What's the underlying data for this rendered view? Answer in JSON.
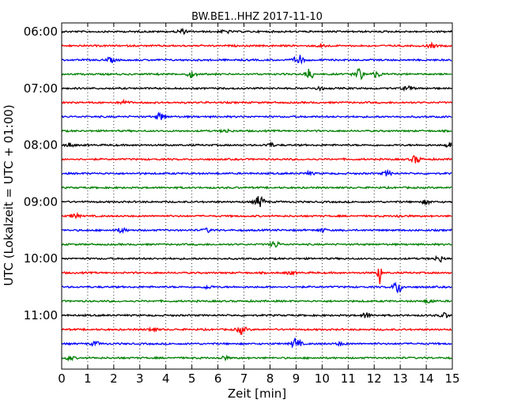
{
  "chart_data": {
    "type": "line",
    "title": "BW.BE1..HHZ 2017-11-10",
    "xlabel": "Zeit  [min]",
    "ylabel": "UTC (Lokalzeit = UTC + 01:00)",
    "xlim": [
      0,
      15
    ],
    "x_ticks": [
      "0",
      "1",
      "2",
      "3",
      "4",
      "5",
      "6",
      "7",
      "8",
      "9",
      "10",
      "11",
      "12",
      "13",
      "14",
      "15"
    ],
    "y_tick_labels": [
      "06:00",
      "07:00",
      "08:00",
      "09:00",
      "10:00",
      "11:00"
    ],
    "grid": "vertical dotted",
    "trace_interval_min": 15,
    "colors": [
      "#000000",
      "#ff0000",
      "#0000ff",
      "#008000"
    ],
    "rows": [
      {
        "start": "06:00",
        "events": [
          {
            "t": 4.6,
            "a": 0.6
          },
          {
            "t": 6.3,
            "a": 0.4
          }
        ]
      },
      {
        "start": "06:15",
        "events": [
          {
            "t": 10.0,
            "a": 0.5
          },
          {
            "t": 14.2,
            "a": 0.5
          }
        ]
      },
      {
        "start": "06:30",
        "events": [
          {
            "t": 1.9,
            "a": 0.6
          },
          {
            "t": 9.1,
            "a": 1.3
          }
        ]
      },
      {
        "start": "06:45",
        "events": [
          {
            "t": 5.0,
            "a": 0.8
          },
          {
            "t": 9.5,
            "a": 1.4
          },
          {
            "t": 11.4,
            "a": 1.6
          },
          {
            "t": 12.1,
            "a": 0.8
          }
        ]
      },
      {
        "start": "07:00",
        "events": [
          {
            "t": 9.9,
            "a": 0.4
          },
          {
            "t": 13.3,
            "a": 0.6
          }
        ]
      },
      {
        "start": "07:15",
        "events": [
          {
            "t": 2.4,
            "a": 0.5
          }
        ]
      },
      {
        "start": "07:30",
        "events": [
          {
            "t": 3.8,
            "a": 1.0
          }
        ]
      },
      {
        "start": "07:45",
        "events": [
          {
            "t": 6.3,
            "a": 0.4
          }
        ]
      },
      {
        "start": "08:00",
        "events": [
          {
            "t": 0.3,
            "a": 0.5
          },
          {
            "t": 8.0,
            "a": 0.5
          },
          {
            "t": 14.9,
            "a": 0.6
          }
        ]
      },
      {
        "start": "08:15",
        "events": [
          {
            "t": 13.6,
            "a": 1.0
          }
        ]
      },
      {
        "start": "08:30",
        "events": [
          {
            "t": 9.5,
            "a": 0.4
          },
          {
            "t": 12.5,
            "a": 0.6
          }
        ]
      },
      {
        "start": "08:45",
        "events": []
      },
      {
        "start": "09:00",
        "events": [
          {
            "t": 7.6,
            "a": 1.6
          },
          {
            "t": 14.0,
            "a": 0.5
          }
        ]
      },
      {
        "start": "09:15",
        "events": [
          {
            "t": 0.5,
            "a": 0.6
          },
          {
            "t": 13.0,
            "a": 0.3
          }
        ]
      },
      {
        "start": "09:30",
        "events": [
          {
            "t": 2.3,
            "a": 0.6
          },
          {
            "t": 5.6,
            "a": 0.5
          },
          {
            "t": 10.0,
            "a": 0.4
          }
        ]
      },
      {
        "start": "09:45",
        "events": [
          {
            "t": 8.2,
            "a": 0.8
          }
        ]
      },
      {
        "start": "10:00",
        "events": [
          {
            "t": 14.5,
            "a": 0.8
          }
        ]
      },
      {
        "start": "10:15",
        "events": [
          {
            "t": 12.2,
            "a": 3.2
          },
          {
            "t": 8.8,
            "a": 0.4
          }
        ]
      },
      {
        "start": "10:30",
        "events": [
          {
            "t": 12.9,
            "a": 1.6
          },
          {
            "t": 5.6,
            "a": 0.4
          }
        ]
      },
      {
        "start": "10:45",
        "events": [
          {
            "t": 14.1,
            "a": 0.5
          }
        ]
      },
      {
        "start": "11:00",
        "events": [
          {
            "t": 11.7,
            "a": 0.7
          },
          {
            "t": 14.7,
            "a": 0.6
          }
        ]
      },
      {
        "start": "11:15",
        "events": [
          {
            "t": 3.5,
            "a": 0.5
          },
          {
            "t": 6.9,
            "a": 1.1
          }
        ]
      },
      {
        "start": "11:30",
        "events": [
          {
            "t": 1.3,
            "a": 0.5
          },
          {
            "t": 9.0,
            "a": 1.5
          },
          {
            "t": 10.7,
            "a": 0.4
          }
        ]
      },
      {
        "start": "11:45",
        "events": [
          {
            "t": 0.3,
            "a": 0.5
          },
          {
            "t": 6.2,
            "a": 0.5
          }
        ]
      }
    ]
  }
}
